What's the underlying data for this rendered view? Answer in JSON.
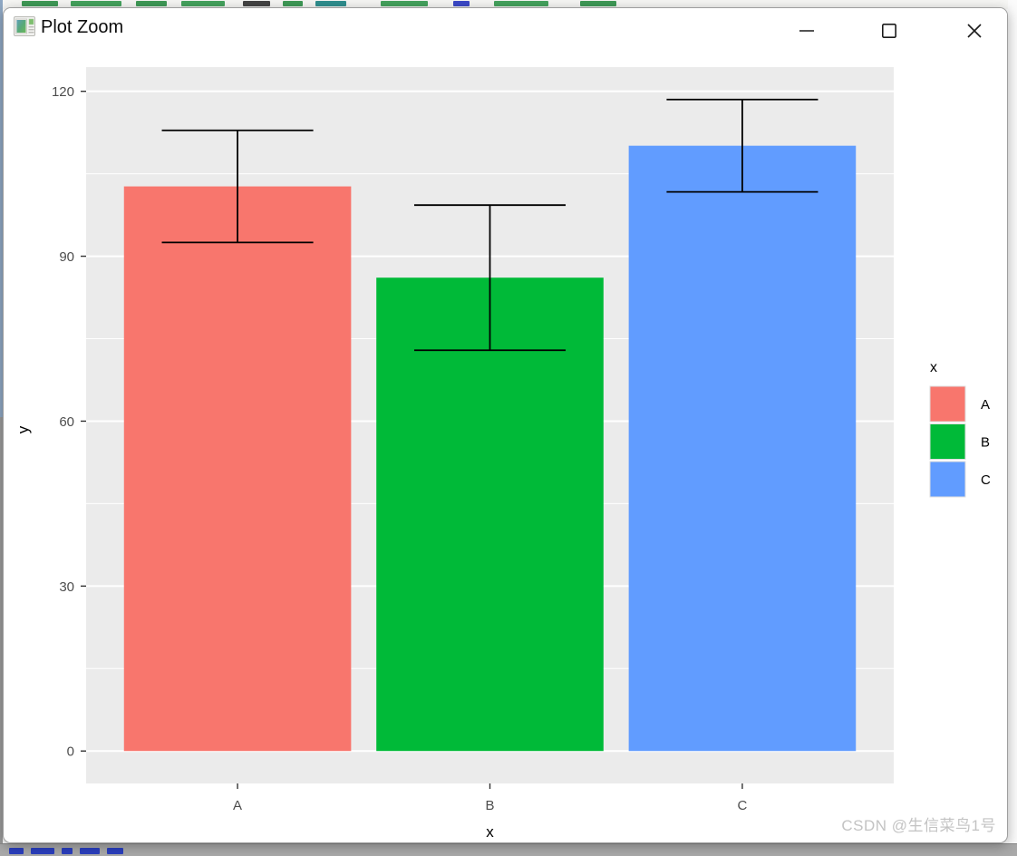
{
  "window": {
    "title": "Plot Zoom",
    "controls": {
      "minimize_label": "Minimize",
      "maximize_label": "Maximize",
      "close_label": "Close"
    }
  },
  "watermark": "CSDN @生信菜鸟1号",
  "chart_data": {
    "type": "bar",
    "title": "",
    "categories": [
      "A",
      "B",
      "C"
    ],
    "series": [
      {
        "name": "y",
        "values": [
          102.7,
          86.1,
          110.1
        ],
        "errors": [
          10.2,
          13.2,
          8.4
        ]
      }
    ],
    "bar_colors": [
      "#F8766D",
      "#00BA38",
      "#619CFF"
    ],
    "xlabel": "x",
    "ylabel": "y",
    "yticks": [
      0,
      30,
      60,
      90,
      120
    ],
    "minor_yticks": [
      15,
      45,
      75,
      105
    ],
    "ylim": [
      -5.9,
      124.4
    ],
    "grid": true,
    "panel_bg": "#EBEBEB",
    "grid_color": "#FFFFFF",
    "tick_color": "#333333",
    "tick_label_color": "#4D4D4D",
    "axis_title_color": "#000000",
    "errorbar_color": "#000000",
    "bar_width": 0.9,
    "errorbar_cap_width": 0.6,
    "legend": {
      "position": "right",
      "title": "x",
      "entries": [
        {
          "label": "A",
          "color": "#F8766D"
        },
        {
          "label": "B",
          "color": "#00BA38"
        },
        {
          "label": "C",
          "color": "#619CFF"
        }
      ]
    }
  }
}
